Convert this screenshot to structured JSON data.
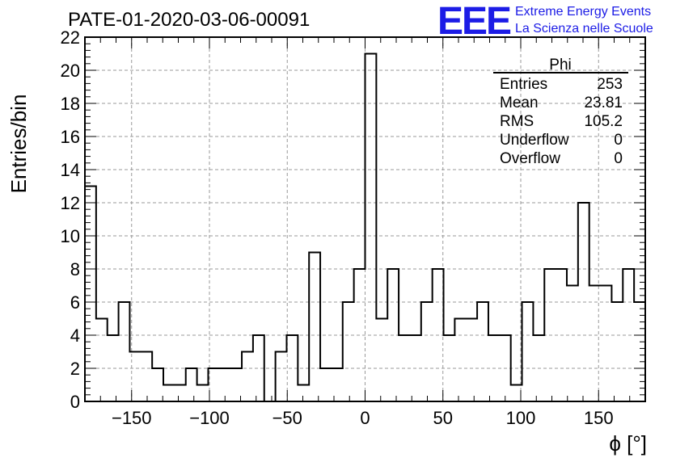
{
  "chart_data": {
    "type": "histogram",
    "title": "PATE-01-2020-03-06-00091",
    "xlabel": "ϕ [°]",
    "ylabel": "Entries/bin",
    "xlim": [
      -180,
      180
    ],
    "ylim": [
      0,
      22
    ],
    "bin_width": 7.2,
    "bin_edges_start": -180,
    "values": [
      13,
      5,
      4,
      6,
      3,
      3,
      2,
      1,
      1,
      2,
      1,
      2,
      2,
      2,
      3,
      4,
      0,
      3,
      4,
      1,
      9,
      2,
      2,
      6,
      8,
      21,
      5,
      8,
      4,
      4,
      6,
      8,
      4,
      5,
      5,
      6,
      4,
      4,
      1,
      6,
      4,
      8,
      8,
      7,
      12,
      7,
      7,
      6,
      8,
      6
    ],
    "x_ticks": [
      -150,
      -100,
      -50,
      0,
      50,
      100,
      150
    ],
    "x_tick_labels": [
      "−150",
      "−100",
      "−50",
      "0",
      "50",
      "100",
      "150"
    ],
    "y_ticks": [
      0,
      2,
      4,
      6,
      8,
      10,
      12,
      14,
      16,
      18,
      20,
      22
    ],
    "y_tick_labels": [
      "0",
      "2",
      "4",
      "6",
      "8",
      "10",
      "12",
      "14",
      "16",
      "18",
      "20",
      "22"
    ],
    "grid": true,
    "stats_box": {
      "name": "Phi",
      "rows": [
        {
          "label": "Entries",
          "value": "253"
        },
        {
          "label": "Mean",
          "value": "23.81"
        },
        {
          "label": "RMS",
          "value": "105.2"
        },
        {
          "label": "Underflow",
          "value": "0"
        },
        {
          "label": "Overflow",
          "value": "0"
        }
      ]
    }
  },
  "branding": {
    "logo_text": "EEE",
    "line1": "Extreme Energy Events",
    "line2": "La Scienza nelle Scuole",
    "color": "#1c1ce6"
  }
}
